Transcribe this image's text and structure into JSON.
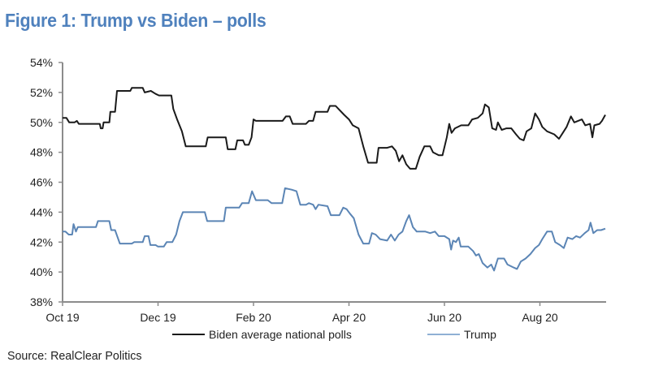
{
  "title": "Figure 1: Trump vs Biden – polls",
  "source": "Source: RealClear Politics",
  "chart_data": {
    "type": "line",
    "title": "Figure 1: Trump vs Biden – polls",
    "xlabel": "",
    "ylabel": "",
    "x_unit": "months since 1 Oct 2019",
    "xlim": [
      0,
      11.37
    ],
    "ylim": [
      38,
      54
    ],
    "y_ticks": [
      38,
      40,
      42,
      44,
      46,
      48,
      50,
      52,
      54
    ],
    "y_tick_labels": [
      "38%",
      "40%",
      "42%",
      "44%",
      "46%",
      "48%",
      "50%",
      "52%",
      "54%"
    ],
    "x_ticks": [
      0,
      2,
      4,
      6,
      8,
      10
    ],
    "x_tick_labels": [
      "Oct 19",
      "Dec 19",
      "Feb 20",
      "Apr 20",
      "Jun 20",
      "Aug 20"
    ],
    "grid": false,
    "legend_position": "bottom",
    "series": [
      {
        "name": "Biden average national polls",
        "color": "#1a1a1a",
        "points": [
          [
            0.0,
            50.3
          ],
          [
            0.08,
            50.3
          ],
          [
            0.14,
            50.0
          ],
          [
            0.25,
            50.0
          ],
          [
            0.3,
            50.1
          ],
          [
            0.34,
            49.9
          ],
          [
            0.6,
            49.9
          ],
          [
            0.78,
            49.9
          ],
          [
            0.8,
            49.6
          ],
          [
            0.84,
            49.6
          ],
          [
            0.86,
            50.0
          ],
          [
            0.98,
            50.0
          ],
          [
            1.0,
            50.7
          ],
          [
            1.1,
            50.7
          ],
          [
            1.14,
            52.1
          ],
          [
            1.42,
            52.1
          ],
          [
            1.45,
            52.3
          ],
          [
            1.68,
            52.3
          ],
          [
            1.72,
            52.0
          ],
          [
            1.85,
            52.1
          ],
          [
            1.95,
            51.9
          ],
          [
            2.02,
            51.8
          ],
          [
            2.28,
            51.8
          ],
          [
            2.32,
            50.9
          ],
          [
            2.4,
            50.2
          ],
          [
            2.5,
            49.4
          ],
          [
            2.58,
            48.4
          ],
          [
            3.0,
            48.4
          ],
          [
            3.04,
            49.0
          ],
          [
            3.42,
            49.0
          ],
          [
            3.46,
            48.2
          ],
          [
            3.62,
            48.2
          ],
          [
            3.66,
            48.8
          ],
          [
            3.78,
            48.8
          ],
          [
            3.82,
            48.5
          ],
          [
            3.9,
            48.5
          ],
          [
            3.96,
            49.0
          ],
          [
            4.0,
            50.2
          ],
          [
            4.05,
            50.1
          ],
          [
            4.61,
            50.1
          ],
          [
            4.68,
            50.4
          ],
          [
            4.76,
            50.4
          ],
          [
            4.82,
            49.9
          ],
          [
            5.1,
            49.9
          ],
          [
            5.16,
            50.1
          ],
          [
            5.25,
            50.1
          ],
          [
            5.3,
            50.7
          ],
          [
            5.55,
            50.7
          ],
          [
            5.6,
            51.1
          ],
          [
            5.72,
            51.1
          ],
          [
            5.78,
            50.9
          ],
          [
            5.9,
            50.5
          ],
          [
            6.0,
            50.2
          ],
          [
            6.08,
            49.8
          ],
          [
            6.2,
            49.6
          ],
          [
            6.3,
            48.4
          ],
          [
            6.4,
            47.3
          ],
          [
            6.58,
            47.3
          ],
          [
            6.62,
            48.3
          ],
          [
            6.8,
            48.3
          ],
          [
            6.9,
            48.4
          ],
          [
            6.98,
            48.1
          ],
          [
            7.05,
            47.4
          ],
          [
            7.12,
            47.8
          ],
          [
            7.2,
            47.2
          ],
          [
            7.28,
            46.9
          ],
          [
            7.4,
            46.9
          ],
          [
            7.48,
            47.7
          ],
          [
            7.58,
            48.4
          ],
          [
            7.7,
            48.4
          ],
          [
            7.76,
            48.0
          ],
          [
            7.88,
            47.8
          ],
          [
            7.96,
            47.8
          ],
          [
            8.05,
            49.0
          ],
          [
            8.1,
            49.9
          ],
          [
            8.15,
            49.3
          ],
          [
            8.22,
            49.6
          ],
          [
            8.35,
            49.8
          ],
          [
            8.5,
            49.8
          ],
          [
            8.58,
            50.2
          ],
          [
            8.7,
            50.3
          ],
          [
            8.8,
            50.6
          ],
          [
            8.85,
            51.2
          ],
          [
            8.93,
            51.0
          ],
          [
            9.0,
            49.6
          ],
          [
            9.08,
            49.5
          ],
          [
            9.12,
            50.0
          ],
          [
            9.2,
            49.5
          ],
          [
            9.3,
            49.6
          ],
          [
            9.4,
            49.6
          ],
          [
            9.5,
            49.2
          ],
          [
            9.58,
            48.9
          ],
          [
            9.66,
            48.8
          ],
          [
            9.72,
            49.4
          ],
          [
            9.82,
            49.6
          ],
          [
            9.9,
            50.6
          ],
          [
            9.98,
            50.2
          ],
          [
            10.05,
            49.7
          ],
          [
            10.15,
            49.4
          ],
          [
            10.3,
            49.2
          ],
          [
            10.4,
            48.9
          ],
          [
            10.48,
            49.3
          ],
          [
            10.56,
            49.7
          ],
          [
            10.65,
            50.4
          ],
          [
            10.72,
            50.0
          ],
          [
            10.8,
            50.1
          ],
          [
            10.88,
            50.2
          ],
          [
            10.95,
            49.8
          ],
          [
            11.05,
            49.9
          ],
          [
            11.1,
            49.0
          ],
          [
            11.14,
            49.8
          ],
          [
            11.25,
            49.9
          ],
          [
            11.3,
            50.1
          ],
          [
            11.37,
            50.5
          ]
        ]
      },
      {
        "name": "Trump",
        "color": "#5b85b5",
        "points": [
          [
            0.0,
            42.7
          ],
          [
            0.06,
            42.7
          ],
          [
            0.13,
            42.5
          ],
          [
            0.2,
            42.5
          ],
          [
            0.23,
            43.2
          ],
          [
            0.28,
            42.7
          ],
          [
            0.32,
            43.0
          ],
          [
            0.7,
            43.0
          ],
          [
            0.74,
            43.4
          ],
          [
            0.98,
            43.4
          ],
          [
            1.02,
            42.8
          ],
          [
            1.1,
            42.8
          ],
          [
            1.2,
            41.9
          ],
          [
            1.45,
            41.9
          ],
          [
            1.5,
            42.0
          ],
          [
            1.68,
            42.0
          ],
          [
            1.72,
            42.4
          ],
          [
            1.8,
            42.4
          ],
          [
            1.84,
            41.8
          ],
          [
            1.95,
            41.8
          ],
          [
            2.0,
            41.7
          ],
          [
            2.12,
            41.7
          ],
          [
            2.18,
            42.0
          ],
          [
            2.3,
            42.0
          ],
          [
            2.38,
            42.5
          ],
          [
            2.45,
            43.4
          ],
          [
            2.52,
            44.0
          ],
          [
            2.98,
            44.0
          ],
          [
            3.03,
            43.4
          ],
          [
            3.38,
            43.4
          ],
          [
            3.42,
            44.3
          ],
          [
            3.7,
            44.3
          ],
          [
            3.76,
            44.6
          ],
          [
            3.9,
            44.6
          ],
          [
            3.97,
            45.4
          ],
          [
            4.05,
            44.8
          ],
          [
            4.3,
            44.8
          ],
          [
            4.38,
            44.6
          ],
          [
            4.6,
            44.6
          ],
          [
            4.66,
            45.6
          ],
          [
            4.8,
            45.5
          ],
          [
            4.9,
            45.4
          ],
          [
            4.98,
            44.5
          ],
          [
            5.1,
            44.5
          ],
          [
            5.16,
            44.6
          ],
          [
            5.25,
            44.5
          ],
          [
            5.3,
            44.2
          ],
          [
            5.36,
            44.5
          ],
          [
            5.55,
            44.4
          ],
          [
            5.62,
            43.8
          ],
          [
            5.8,
            43.8
          ],
          [
            5.88,
            44.3
          ],
          [
            5.95,
            44.2
          ],
          [
            6.02,
            43.9
          ],
          [
            6.1,
            43.6
          ],
          [
            6.2,
            42.5
          ],
          [
            6.3,
            41.9
          ],
          [
            6.42,
            41.9
          ],
          [
            6.48,
            42.6
          ],
          [
            6.56,
            42.5
          ],
          [
            6.65,
            42.2
          ],
          [
            6.8,
            42.1
          ],
          [
            6.88,
            42.5
          ],
          [
            6.96,
            42.1
          ],
          [
            7.04,
            42.5
          ],
          [
            7.12,
            42.7
          ],
          [
            7.2,
            43.4
          ],
          [
            7.26,
            43.8
          ],
          [
            7.34,
            43.0
          ],
          [
            7.42,
            42.7
          ],
          [
            7.6,
            42.7
          ],
          [
            7.7,
            42.6
          ],
          [
            7.8,
            42.7
          ],
          [
            7.88,
            42.4
          ],
          [
            8.0,
            42.4
          ],
          [
            8.1,
            42.2
          ],
          [
            8.14,
            41.5
          ],
          [
            8.18,
            42.1
          ],
          [
            8.24,
            42.0
          ],
          [
            8.3,
            42.3
          ],
          [
            8.34,
            41.7
          ],
          [
            8.5,
            41.7
          ],
          [
            8.6,
            41.4
          ],
          [
            8.66,
            41.1
          ],
          [
            8.72,
            41.2
          ],
          [
            8.8,
            40.6
          ],
          [
            8.9,
            40.3
          ],
          [
            8.98,
            40.5
          ],
          [
            9.04,
            40.1
          ],
          [
            9.12,
            40.9
          ],
          [
            9.25,
            40.9
          ],
          [
            9.32,
            40.5
          ],
          [
            9.45,
            40.3
          ],
          [
            9.52,
            40.2
          ],
          [
            9.6,
            40.7
          ],
          [
            9.7,
            40.9
          ],
          [
            9.8,
            41.2
          ],
          [
            9.9,
            41.6
          ],
          [
            9.98,
            41.8
          ],
          [
            10.05,
            42.2
          ],
          [
            10.15,
            42.7
          ],
          [
            10.25,
            42.7
          ],
          [
            10.32,
            42.0
          ],
          [
            10.42,
            41.8
          ],
          [
            10.5,
            41.6
          ],
          [
            10.58,
            42.3
          ],
          [
            10.68,
            42.2
          ],
          [
            10.76,
            42.4
          ],
          [
            10.84,
            42.3
          ],
          [
            10.94,
            42.6
          ],
          [
            11.02,
            42.8
          ],
          [
            11.06,
            43.3
          ],
          [
            11.12,
            42.6
          ],
          [
            11.2,
            42.8
          ],
          [
            11.28,
            42.8
          ],
          [
            11.37,
            42.9
          ]
        ]
      }
    ]
  }
}
